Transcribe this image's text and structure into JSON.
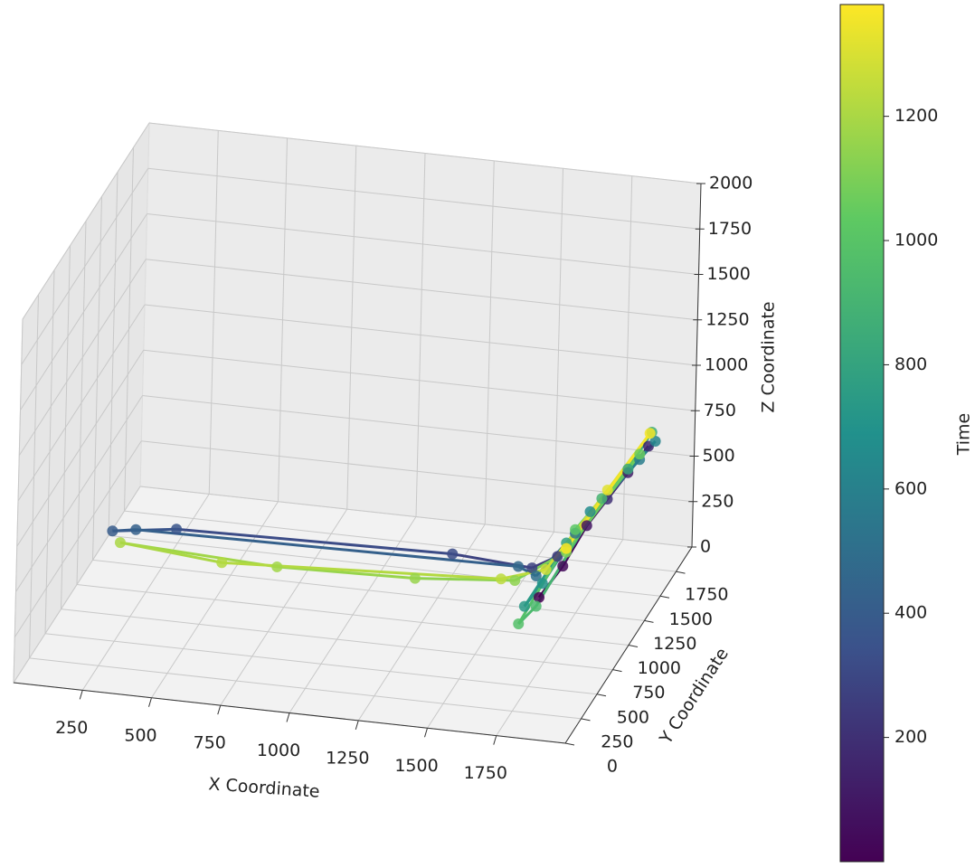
{
  "chart_data": {
    "type": "scatter3d",
    "xlabel": "X Coordinate",
    "ylabel": "Y Coordinate",
    "zlabel": "Z Coordinate",
    "xlim": [
      0,
      2000
    ],
    "ylim": [
      0,
      2000
    ],
    "zlim": [
      0,
      2000
    ],
    "xticks": [
      250,
      500,
      750,
      1000,
      1250,
      1500,
      1750
    ],
    "yticks": [
      0,
      250,
      500,
      750,
      1000,
      1250,
      1500,
      1750
    ],
    "zticks": [
      0,
      250,
      500,
      750,
      1000,
      1250,
      1500,
      1750,
      2000
    ],
    "grid": true,
    "colorbar": {
      "label": "Time",
      "clim": [
        0,
        1380
      ],
      "ticks": [
        200,
        400,
        600,
        800,
        1000,
        1200
      ],
      "colormap": [
        "#440154",
        "#3b528b",
        "#21918c",
        "#5ec962",
        "#fde725"
      ]
    },
    "points": {
      "x": [
        1650,
        1700,
        1750,
        1850,
        1900,
        1800,
        1680,
        1600,
        1300,
        300,
        80,
        160,
        1550,
        1620,
        1720,
        1880,
        1920,
        1750,
        1650,
        1620,
        1700,
        1850,
        1900,
        1780,
        1640,
        1600,
        1720,
        1880,
        1700,
        1550,
        1200,
        700,
        120,
        500,
        1500,
        1650,
        1800,
        1900,
        1700
      ],
      "y": [
        1100,
        1250,
        1400,
        1600,
        1700,
        1500,
        1250,
        1200,
        1250,
        1250,
        1200,
        1220,
        1200,
        1180,
        1350,
        1650,
        1720,
        1450,
        1150,
        1000,
        1300,
        1600,
        1750,
        1500,
        1100,
        1000,
        1350,
        1650,
        1300,
        1150,
        1100,
        1100,
        1150,
        1100,
        1150,
        1200,
        1500,
        1720,
        1300
      ],
      "z": [
        150,
        250,
        400,
        600,
        700,
        500,
        300,
        250,
        250,
        220,
        200,
        210,
        250,
        220,
        380,
        650,
        720,
        450,
        200,
        150,
        350,
        620,
        750,
        500,
        100,
        50,
        400,
        680,
        300,
        200,
        180,
        160,
        170,
        150,
        200,
        250,
        550,
        760,
        320
      ],
      "t": [
        0,
        40,
        80,
        120,
        160,
        200,
        240,
        280,
        320,
        360,
        400,
        420,
        460,
        500,
        540,
        580,
        620,
        660,
        700,
        740,
        780,
        820,
        860,
        900,
        940,
        980,
        1020,
        1060,
        1100,
        1140,
        1160,
        1180,
        1200,
        1220,
        1240,
        1280,
        1320,
        1360,
        1380
      ]
    }
  }
}
